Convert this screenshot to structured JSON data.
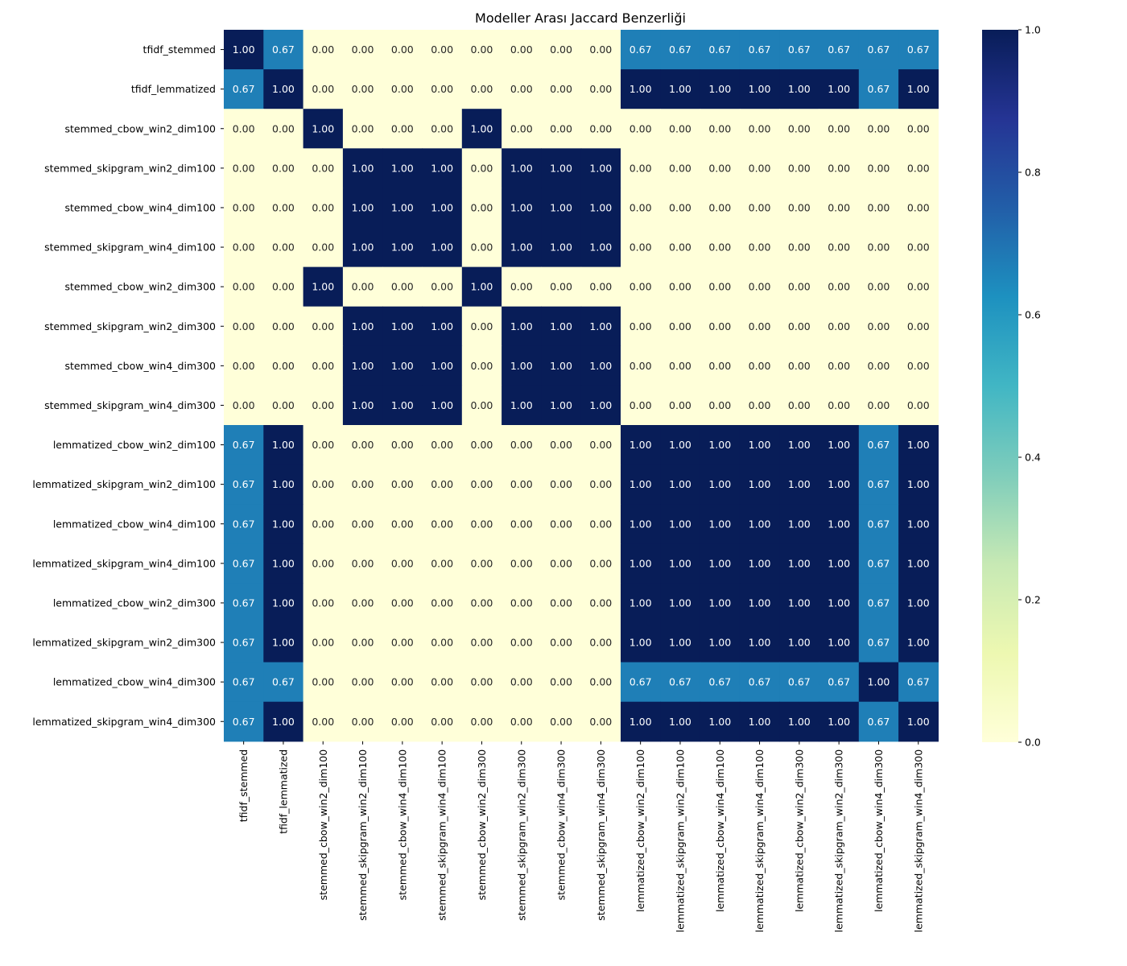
{
  "chart_data": {
    "type": "heatmap",
    "title": "Modeller Arası Jaccard Benzerliği",
    "labels": [
      "tfidf_stemmed",
      "tfidf_lemmatized",
      "stemmed_cbow_win2_dim100",
      "stemmed_skipgram_win2_dim100",
      "stemmed_cbow_win4_dim100",
      "stemmed_skipgram_win4_dim100",
      "stemmed_cbow_win2_dim300",
      "stemmed_skipgram_win2_dim300",
      "stemmed_cbow_win4_dim300",
      "stemmed_skipgram_win4_dim300",
      "lemmatized_cbow_win2_dim100",
      "lemmatized_skipgram_win2_dim100",
      "lemmatized_cbow_win4_dim100",
      "lemmatized_skipgram_win4_dim100",
      "lemmatized_cbow_win2_dim300",
      "lemmatized_skipgram_win2_dim300",
      "lemmatized_cbow_win4_dim300",
      "lemmatized_skipgram_win4_dim300"
    ],
    "values": [
      [
        1.0,
        0.67,
        0,
        0,
        0,
        0,
        0,
        0,
        0,
        0,
        0.67,
        0.67,
        0.67,
        0.67,
        0.67,
        0.67,
        0.67,
        0.67
      ],
      [
        0.67,
        1.0,
        0,
        0,
        0,
        0,
        0,
        0,
        0,
        0,
        1,
        1,
        1,
        1,
        1,
        1,
        0.67,
        1
      ],
      [
        0,
        0,
        1,
        0,
        0,
        0,
        1,
        0,
        0,
        0,
        0,
        0,
        0,
        0,
        0,
        0,
        0,
        0
      ],
      [
        0,
        0,
        0,
        1,
        1,
        1,
        0,
        1,
        1,
        1,
        0,
        0,
        0,
        0,
        0,
        0,
        0,
        0
      ],
      [
        0,
        0,
        0,
        1,
        1,
        1,
        0,
        1,
        1,
        1,
        0,
        0,
        0,
        0,
        0,
        0,
        0,
        0
      ],
      [
        0,
        0,
        0,
        1,
        1,
        1,
        0,
        1,
        1,
        1,
        0,
        0,
        0,
        0,
        0,
        0,
        0,
        0
      ],
      [
        0,
        0,
        1,
        0,
        0,
        0,
        1,
        0,
        0,
        0,
        0,
        0,
        0,
        0,
        0,
        0,
        0,
        0
      ],
      [
        0,
        0,
        0,
        1,
        1,
        1,
        0,
        1,
        1,
        1,
        0,
        0,
        0,
        0,
        0,
        0,
        0,
        0
      ],
      [
        0,
        0,
        0,
        1,
        1,
        1,
        0,
        1,
        1,
        1,
        0,
        0,
        0,
        0,
        0,
        0,
        0,
        0
      ],
      [
        0,
        0,
        0,
        1,
        1,
        1,
        0,
        1,
        1,
        1,
        0,
        0,
        0,
        0,
        0,
        0,
        0,
        0
      ],
      [
        0.67,
        1,
        0,
        0,
        0,
        0,
        0,
        0,
        0,
        0,
        1,
        1,
        1,
        1,
        1,
        1,
        0.67,
        1
      ],
      [
        0.67,
        1,
        0,
        0,
        0,
        0,
        0,
        0,
        0,
        0,
        1,
        1,
        1,
        1,
        1,
        1,
        0.67,
        1
      ],
      [
        0.67,
        1,
        0,
        0,
        0,
        0,
        0,
        0,
        0,
        0,
        1,
        1,
        1,
        1,
        1,
        1,
        0.67,
        1
      ],
      [
        0.67,
        1,
        0,
        0,
        0,
        0,
        0,
        0,
        0,
        0,
        1,
        1,
        1,
        1,
        1,
        1,
        0.67,
        1
      ],
      [
        0.67,
        1,
        0,
        0,
        0,
        0,
        0,
        0,
        0,
        0,
        1,
        1,
        1,
        1,
        1,
        1,
        0.67,
        1
      ],
      [
        0.67,
        1,
        0,
        0,
        0,
        0,
        0,
        0,
        0,
        0,
        1,
        1,
        1,
        1,
        1,
        1,
        0.67,
        1
      ],
      [
        0.67,
        0.67,
        0,
        0,
        0,
        0,
        0,
        0,
        0,
        0,
        0.67,
        0.67,
        0.67,
        0.67,
        0.67,
        0.67,
        1,
        0.67
      ],
      [
        0.67,
        1,
        0,
        0,
        0,
        0,
        0,
        0,
        0,
        0,
        1,
        1,
        1,
        1,
        1,
        1,
        0.67,
        1
      ]
    ],
    "value_format": "0.00",
    "vmin": 0,
    "vmax": 1,
    "colormap": "YlGnBu",
    "colorbar": {
      "ticks": [
        "0.0",
        "0.2",
        "0.4",
        "0.6",
        "0.8",
        "1.0"
      ]
    },
    "colors": {
      "low": "#ffffd9",
      "mid": "#41b6c4",
      "high": "#081d58",
      "text_dark": "#262626",
      "text_light": "#ffffff"
    }
  }
}
